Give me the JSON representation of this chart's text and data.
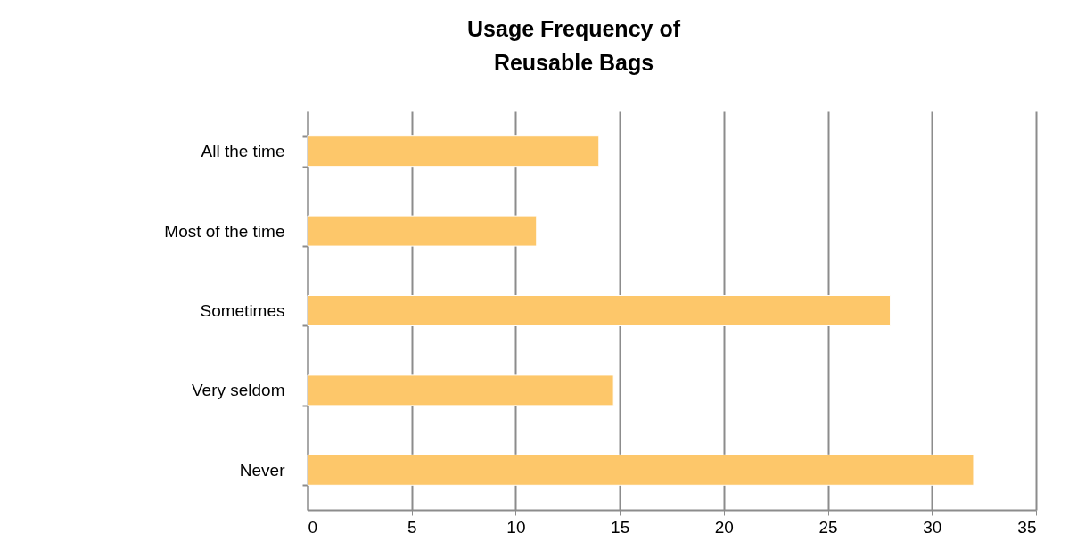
{
  "chart_data": {
    "type": "bar",
    "orientation": "horizontal",
    "title": "Usage Frequency of\nReusable  Bags",
    "categories": [
      "All the time",
      "Most of the time",
      "Sometimes",
      "Very seldom",
      "Never"
    ],
    "values": [
      14,
      11,
      28,
      14.7,
      32
    ],
    "color": "#fdc76a",
    "xlim": [
      0,
      35
    ],
    "xticks": [
      0,
      5,
      10,
      15,
      20,
      25,
      30,
      35
    ],
    "grid": "x"
  }
}
